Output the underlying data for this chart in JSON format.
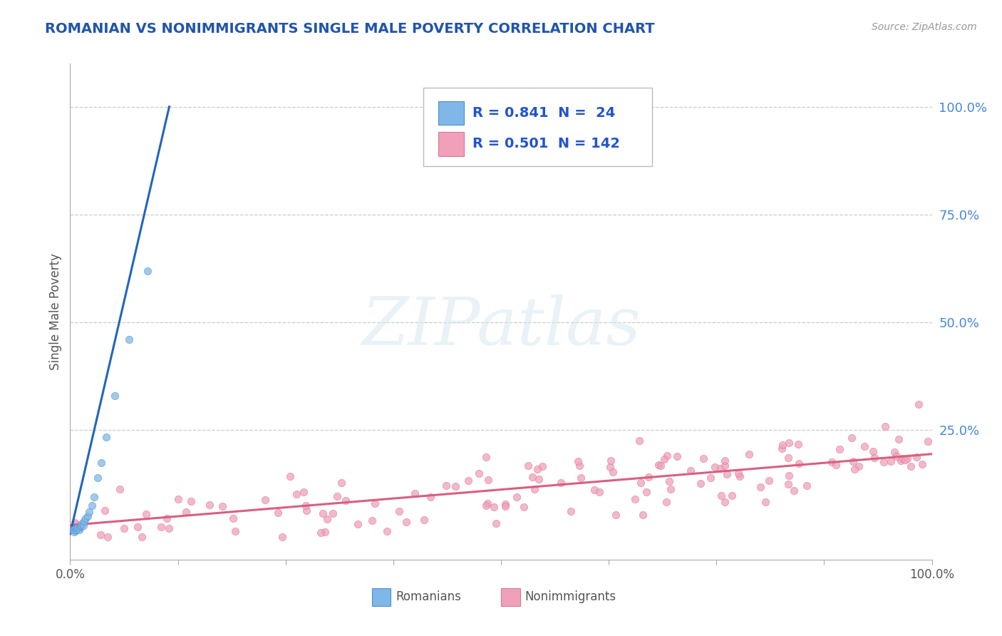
{
  "title": "ROMANIAN VS NONIMMIGRANTS SINGLE MALE POVERTY CORRELATION CHART",
  "source": "Source: ZipAtlas.com",
  "ylabel": "Single Male Poverty",
  "ytick_labels": [
    "100.0%",
    "75.0%",
    "50.0%",
    "25.0%"
  ],
  "ytick_positions": [
    1.0,
    0.75,
    0.5,
    0.25
  ],
  "legend_r1": "R = 0.841  N =  24",
  "legend_r2": "R = 0.501  N = 142",
  "legend_label1": "Romanians",
  "legend_label2": "Nonimmigrants",
  "xlim": [
    0.0,
    1.0
  ],
  "ylim": [
    -0.05,
    1.1
  ],
  "watermark": "ZIPatlas",
  "background_color": "#ffffff",
  "grid_color": "#cccccc",
  "title_color": "#2255aa",
  "blue_color": "#7fb8e8",
  "blue_edge": "#5090c8",
  "blue_line_color": "#2266bb",
  "pink_color": "#f0a0b8",
  "pink_edge": "#d87898",
  "pink_line_color": "#d86080",
  "right_tick_color": "#4488dd",
  "scatter_alpha": 0.75,
  "scatter_size": 55,
  "ro_x": [
    0.003,
    0.005,
    0.006,
    0.007,
    0.008,
    0.009,
    0.01,
    0.011,
    0.012,
    0.013,
    0.014,
    0.015,
    0.016,
    0.018,
    0.02,
    0.022,
    0.025,
    0.028,
    0.032,
    0.036,
    0.042,
    0.052,
    0.068,
    0.09
  ],
  "ro_y": [
    0.02,
    0.015,
    0.018,
    0.02,
    0.022,
    0.025,
    0.02,
    0.025,
    0.028,
    0.03,
    0.035,
    0.03,
    0.04,
    0.045,
    0.05,
    0.06,
    0.075,
    0.095,
    0.14,
    0.175,
    0.235,
    0.33,
    0.46,
    0.62
  ],
  "blue_line_x": [
    0.0,
    0.115
  ],
  "blue_line_y": [
    0.01,
    1.0
  ],
  "pink_line_x": [
    0.0,
    1.0
  ],
  "pink_line_y": [
    0.03,
    0.195
  ]
}
